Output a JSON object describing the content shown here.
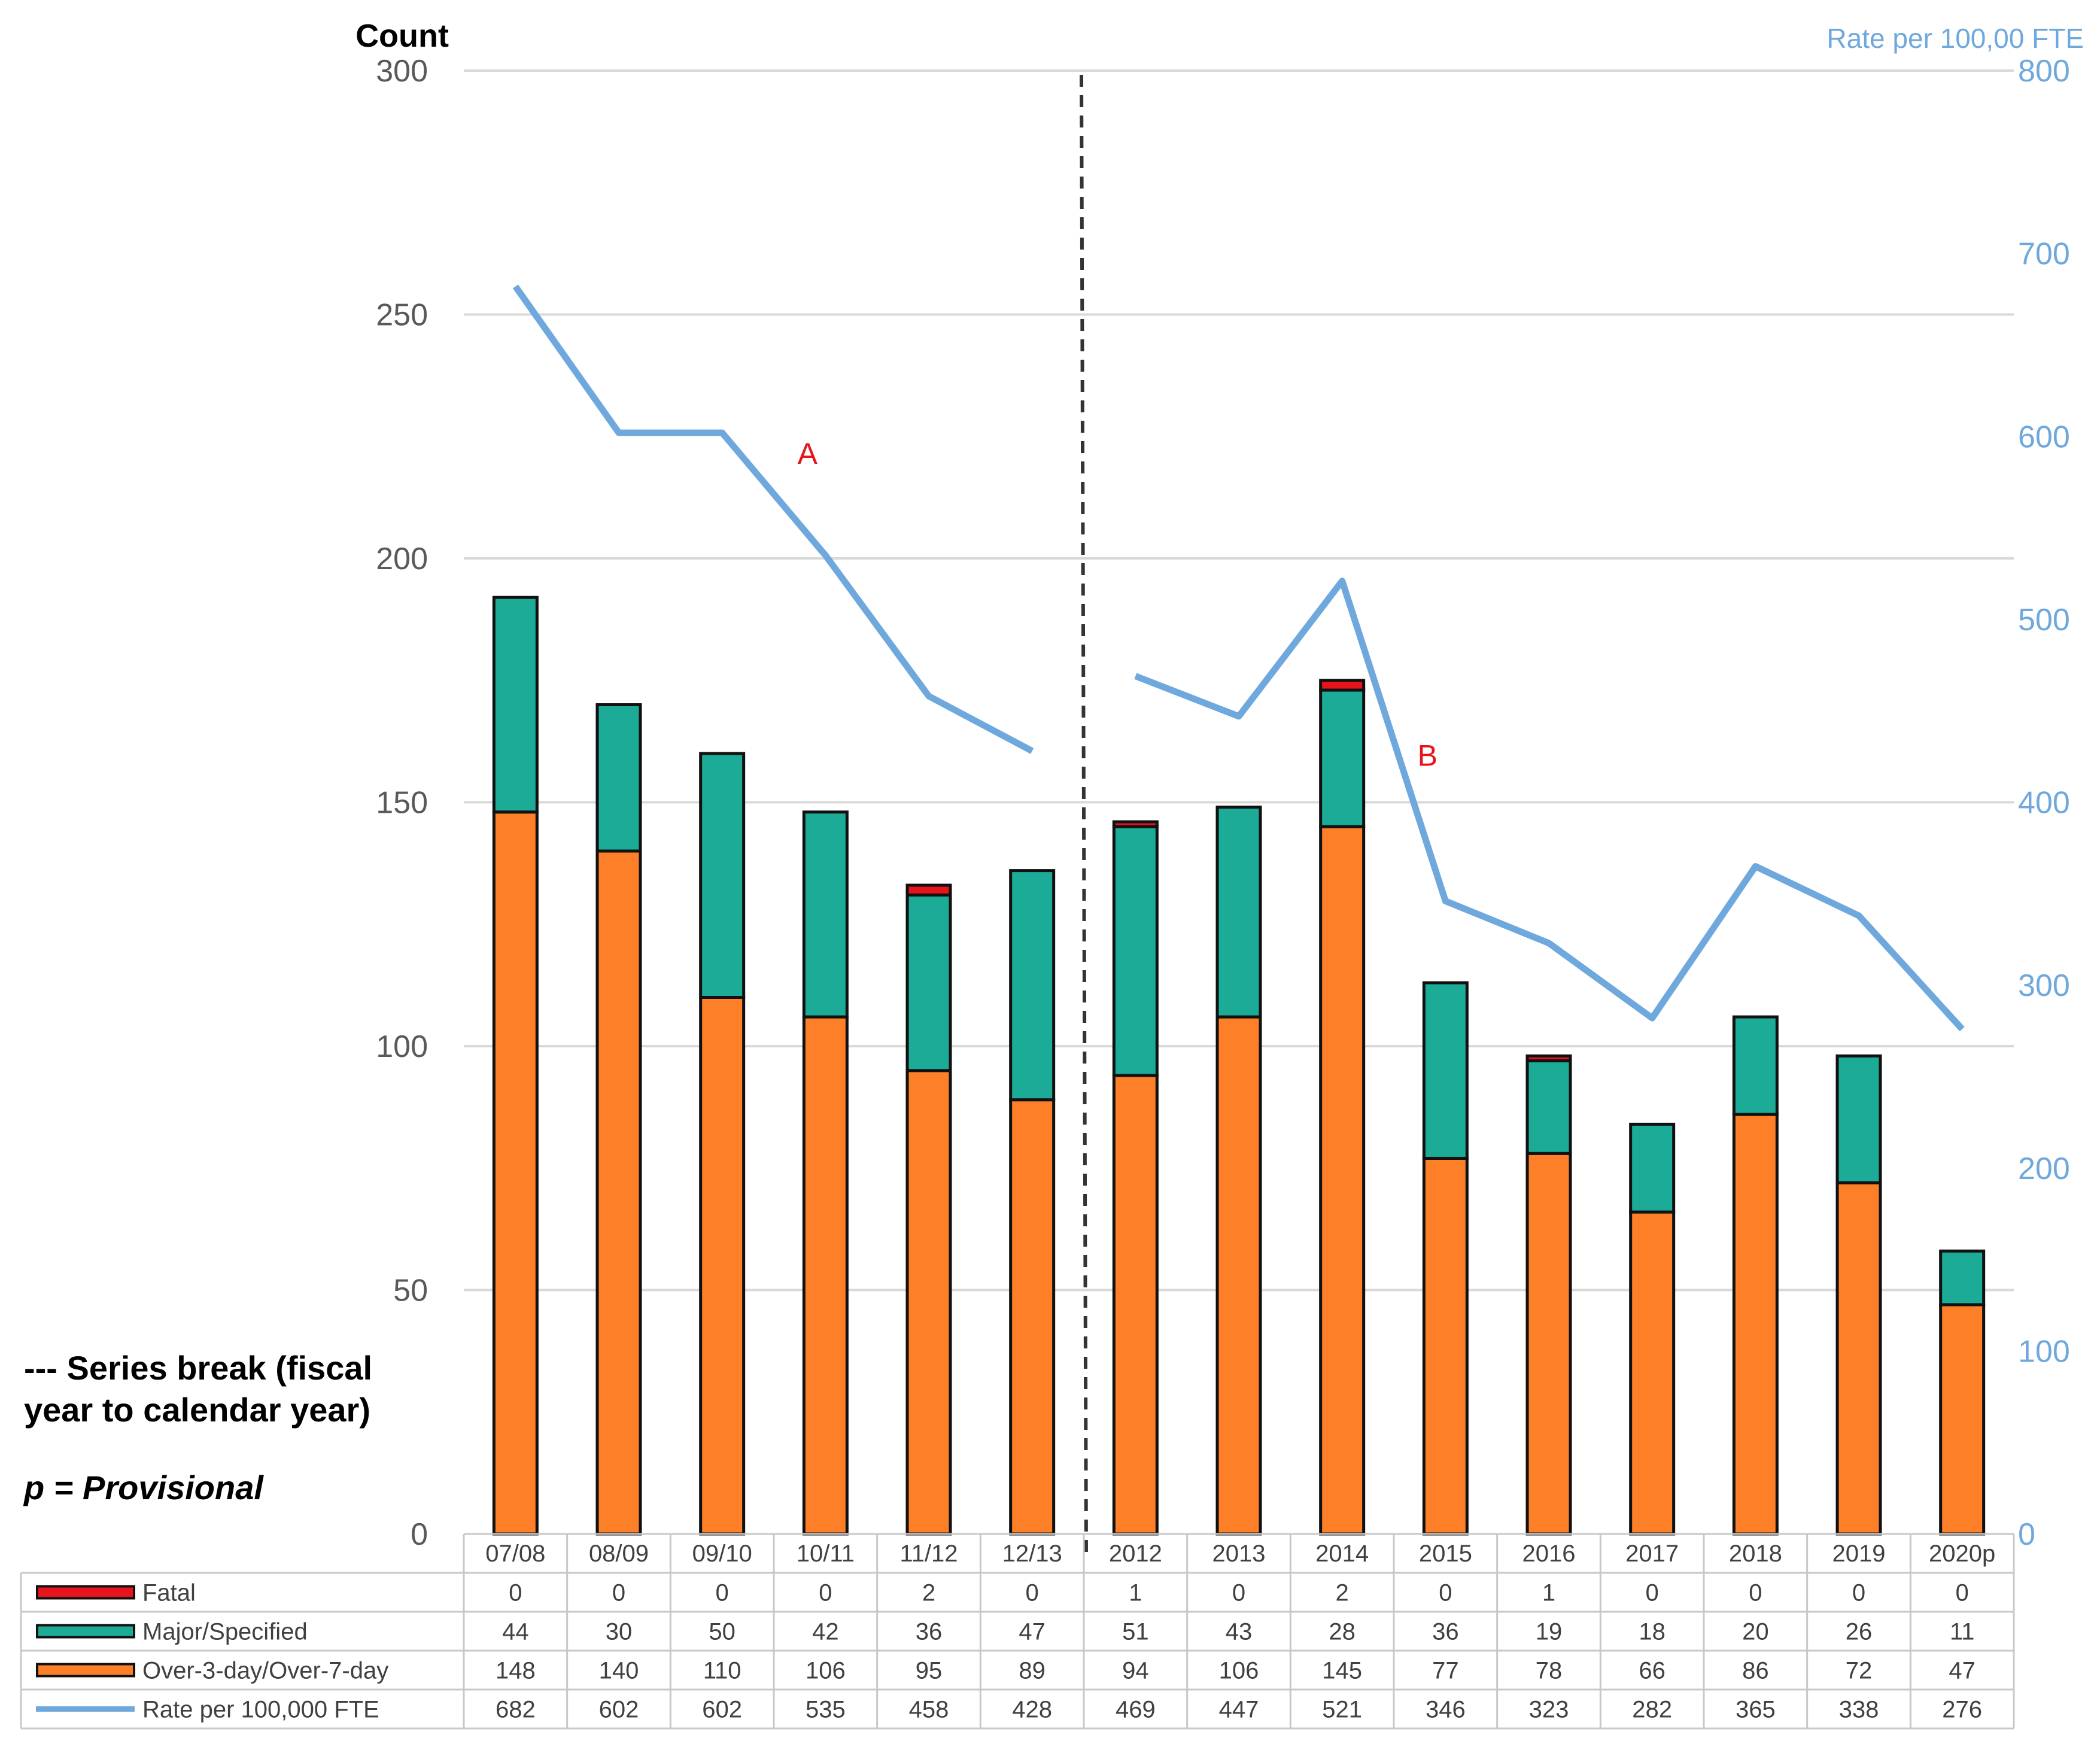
{
  "chart_data": {
    "type": "bar",
    "stacked": true,
    "categories": [
      "07/08",
      "08/09",
      "09/10",
      "10/11",
      "11/12",
      "12/13",
      "2012",
      "2013",
      "2014",
      "2015",
      "2016",
      "2017",
      "2018",
      "2019",
      "2020p"
    ],
    "series": [
      {
        "name": "Over-3-day/Over-7-day",
        "color": "#fd7f28",
        "values": [
          148,
          140,
          110,
          106,
          95,
          89,
          94,
          106,
          145,
          77,
          78,
          66,
          86,
          72,
          47
        ]
      },
      {
        "name": "Major/Specified",
        "color": "#1bab97",
        "values": [
          44,
          30,
          50,
          42,
          36,
          47,
          51,
          43,
          28,
          36,
          19,
          18,
          20,
          26,
          11
        ]
      },
      {
        "name": "Fatal",
        "color": "#e8141c",
        "values": [
          0,
          0,
          0,
          0,
          2,
          0,
          1,
          0,
          2,
          0,
          1,
          0,
          0,
          0,
          0
        ]
      }
    ],
    "line_series": {
      "name": "Rate per 100,000 FTE",
      "color": "#6fa8dc",
      "axis": "right",
      "values": [
        682,
        602,
        602,
        535,
        458,
        428,
        469,
        447,
        521,
        346,
        323,
        282,
        365,
        338,
        276
      ],
      "break_after_index": 5
    },
    "ylabel": "Count",
    "ylim": [
      0,
      300
    ],
    "yticks": [
      0,
      50,
      100,
      150,
      200,
      250,
      300
    ],
    "y2label": "Rate per 100,00 FTE",
    "y2lim": [
      0,
      800
    ],
    "y2ticks": [
      0,
      100,
      200,
      300,
      400,
      500,
      600,
      700,
      800
    ],
    "series_break_after_index": 5,
    "annotations": [
      {
        "text": "A",
        "category_index": 3,
        "rate": 585
      },
      {
        "text": "B",
        "category_index": 9,
        "rate": 420
      }
    ],
    "notes": {
      "break_line1": "--- Series break (fiscal",
      "break_line2": "year to calendar year)",
      "provisional_prefix": "p = ",
      "provisional_word": "Provisional"
    },
    "table_rows": [
      {
        "key": "fatal",
        "label": "Fatal",
        "series": "Fatal"
      },
      {
        "key": "major",
        "label": "Major/Specified",
        "series": "Major/Specified"
      },
      {
        "key": "over",
        "label": "Over-3-day/Over-7-day",
        "series": "Over-3-day/Over-7-day"
      },
      {
        "key": "rate",
        "label": "Rate per 100,000 FTE",
        "series": "Rate per 100,000 FTE"
      }
    ]
  }
}
